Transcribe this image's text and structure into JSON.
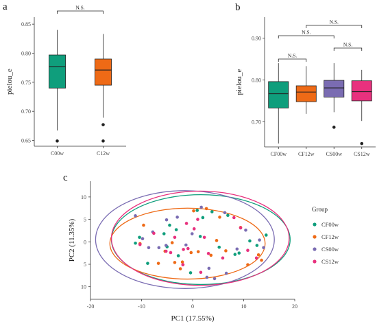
{
  "panel_labels": {
    "a": "a",
    "b": "b",
    "c": "c"
  },
  "colors": {
    "CF00w": "#0f9e7c",
    "CF12w": "#ee6a16",
    "CS00w": "#7a6cb2",
    "CS12w": "#e8317e",
    "C00w": "#0f9e7c",
    "C12w": "#ee6a16"
  },
  "chart_data": [
    {
      "type": "box",
      "panel": "a",
      "ylabel": "pielou_e",
      "ylim": [
        0.64,
        0.862
      ],
      "yticks": [
        0.65,
        0.7,
        0.75,
        0.8,
        0.85
      ],
      "ytick_labels": [
        "0.65",
        "0.70",
        "0.75",
        "0.80",
        "0.85"
      ],
      "categories": [
        "C00w",
        "C12w"
      ],
      "boxes": [
        {
          "name": "C00w",
          "whisker_low": 0.667,
          "q1": 0.74,
          "median": 0.777,
          "q3": 0.797,
          "whisker_high": 0.84,
          "outliers": [
            0.649
          ]
        },
        {
          "name": "C12w",
          "whisker_low": 0.689,
          "q1": 0.745,
          "median": 0.771,
          "q3": 0.79,
          "whisker_high": 0.833,
          "outliers": [
            0.677,
            0.649
          ]
        }
      ],
      "annotations": [
        {
          "label": "N.S.",
          "from": "C00w",
          "to": "C12w"
        }
      ]
    },
    {
      "type": "box",
      "panel": "b",
      "ylabel": "pielou_e",
      "ylim": [
        0.64,
        0.95
      ],
      "yticks": [
        0.7,
        0.8,
        0.9
      ],
      "ytick_labels": [
        "0.70",
        "0.80",
        "0.90"
      ],
      "categories": [
        "CF00w",
        "CF12w",
        "CS00w",
        "CS12w"
      ],
      "boxes": [
        {
          "name": "CF00w",
          "whisker_low": 0.648,
          "q1": 0.733,
          "median": 0.767,
          "q3": 0.796,
          "whisker_high": 0.84,
          "outliers": []
        },
        {
          "name": "CF12w",
          "whisker_low": 0.719,
          "q1": 0.748,
          "median": 0.771,
          "q3": 0.786,
          "whisker_high": 0.833,
          "outliers": []
        },
        {
          "name": "CS00w",
          "whisker_low": 0.723,
          "q1": 0.759,
          "median": 0.781,
          "q3": 0.799,
          "whisker_high": 0.84,
          "outliers": [
            0.687
          ]
        },
        {
          "name": "CS12w",
          "whisker_low": 0.702,
          "q1": 0.75,
          "median": 0.772,
          "q3": 0.798,
          "whisker_high": 0.824,
          "outliers": [
            0.648
          ]
        }
      ],
      "annotations": [
        {
          "label": "N.S.",
          "from": "CF00w",
          "to": "CF12w"
        },
        {
          "label": "N.S.",
          "from": "CS00w",
          "to": "CS12w"
        },
        {
          "label": "N.S.",
          "from": "CF00w",
          "to": "CS00w"
        },
        {
          "label": "N.S.",
          "from": "CF12w",
          "to": "CS12w"
        }
      ]
    },
    {
      "type": "scatter",
      "panel": "c",
      "xlabel": "PC1 (17.55%)",
      "ylabel": "PC2 (11.35%)",
      "xlim": [
        -20,
        20
      ],
      "ylim": [
        -12.8,
        13.5
      ],
      "xticks": [
        -20,
        -10,
        0,
        10,
        20
      ],
      "yticks": [
        10,
        5,
        0,
        -5,
        -10
      ],
      "ytick_labels": [
        "10",
        "5",
        "0",
        "5",
        "10"
      ],
      "legend": {
        "title": "Group",
        "position": "right"
      },
      "ellipses": [
        {
          "group": "CF00w",
          "cx": 1.6,
          "cy": 0.5,
          "rx": 17.5,
          "ry": 10.0
        },
        {
          "group": "CF12w",
          "cx": -1.0,
          "cy": -0.4,
          "rx": 15.2,
          "ry": 7.9
        },
        {
          "group": "CS00w",
          "cx": -1.5,
          "cy": 0.5,
          "rx": 17.5,
          "ry": 10.9
        },
        {
          "group": "CS12w",
          "cx": 1.5,
          "cy": 0.8,
          "rx": 17.4,
          "ry": 10.5
        }
      ],
      "series": [
        {
          "name": "CF00w",
          "points": [
            [
              -11.2,
              -0.3
            ],
            [
              -10.4,
              1.0
            ],
            [
              -8.8,
              -4.8
            ],
            [
              -5.6,
              1.8
            ],
            [
              -4.5,
              3.7
            ],
            [
              -3.2,
              2.7
            ],
            [
              -2.8,
              -3.1
            ],
            [
              0.9,
              7.0
            ],
            [
              1.5,
              1.2
            ],
            [
              2.0,
              5.4
            ],
            [
              3.8,
              6.7
            ],
            [
              5.2,
              -1.2
            ],
            [
              6.9,
              5.9
            ],
            [
              9.1,
              -2.5
            ],
            [
              12.6,
              -0.8
            ],
            [
              14.4,
              1.5
            ],
            [
              -0.4,
              -6.9
            ],
            [
              8.3,
              -2.8
            ],
            [
              -5.0,
              -1.1
            ],
            [
              11.2,
              0.2
            ]
          ]
        },
        {
          "name": "CF12w",
          "points": [
            [
              -10.3,
              -0.4
            ],
            [
              -9.6,
              3.7
            ],
            [
              -6.7,
              -4.8
            ],
            [
              -5.4,
              -2.1
            ],
            [
              -4.0,
              -0.2
            ],
            [
              -3.5,
              -4.6
            ],
            [
              -2.0,
              -4.5
            ],
            [
              -0.3,
              -2.4
            ],
            [
              0.2,
              6.9
            ],
            [
              2.7,
              7.4
            ],
            [
              3.6,
              -3.0
            ],
            [
              4.7,
              0.3
            ],
            [
              5.3,
              5.5
            ],
            [
              6.5,
              -2.0
            ],
            [
              9.4,
              3.2
            ],
            [
              10.8,
              -5.1
            ],
            [
              13.5,
              -4.1
            ],
            [
              12.9,
              -2.9
            ],
            [
              -2.4,
              -6.0
            ],
            [
              1.1,
              -2.2
            ]
          ]
        },
        {
          "name": "CS00w",
          "points": [
            [
              -11.2,
              5.8
            ],
            [
              -9.8,
              0.7
            ],
            [
              -8.6,
              -1.3
            ],
            [
              -7.8,
              2.2
            ],
            [
              -6.6,
              -1.3
            ],
            [
              -5.2,
              -0.8
            ],
            [
              -5.1,
              4.9
            ],
            [
              -3.0,
              5.5
            ],
            [
              -1.3,
              -0.7
            ],
            [
              -0.1,
              1.8
            ],
            [
              1.7,
              7.7
            ],
            [
              2.8,
              -7.9
            ],
            [
              3.2,
              -5.9
            ],
            [
              4.3,
              -8.2
            ],
            [
              6.3,
              6.5
            ],
            [
              6.6,
              -7.0
            ],
            [
              8.7,
              -1.6
            ],
            [
              10.4,
              2.6
            ],
            [
              13.1,
              0.4
            ],
            [
              13.9,
              -1.3
            ]
          ]
        },
        {
          "name": "CS12w",
          "points": [
            [
              -10.3,
              -0.6
            ],
            [
              -7.6,
              1.9
            ],
            [
              -5.2,
              -2.1
            ],
            [
              -4.3,
              -2.4
            ],
            [
              -1.9,
              -5.1
            ],
            [
              -1.8,
              -1.7
            ],
            [
              -1.2,
              4.1
            ],
            [
              -0.9,
              -1.5
            ],
            [
              0.3,
              2.9
            ],
            [
              1.0,
              5.0
            ],
            [
              1.6,
              -6.8
            ],
            [
              2.3,
              1.0
            ],
            [
              3.1,
              -2.6
            ],
            [
              5.9,
              -3.6
            ],
            [
              8.1,
              5.4
            ],
            [
              9.4,
              3.1
            ],
            [
              10.8,
              -1.9
            ],
            [
              12.5,
              -3.6
            ],
            [
              -3.5,
              1.0
            ],
            [
              -1.9,
              -5.1
            ]
          ]
        }
      ]
    }
  ]
}
